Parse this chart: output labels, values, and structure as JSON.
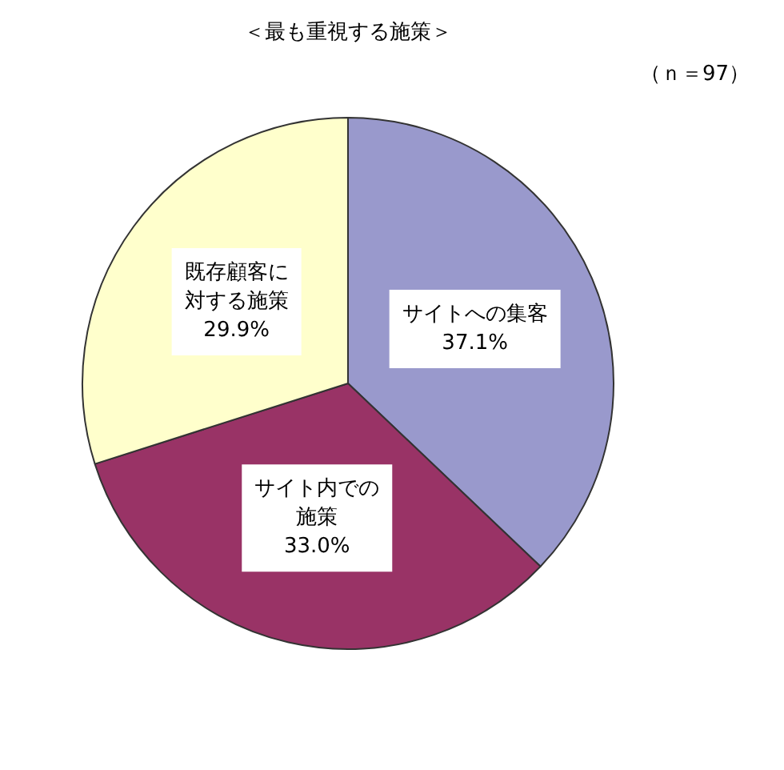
{
  "chart_data": {
    "type": "pie",
    "title": "＜最も重視する施策＞",
    "annotations": [
      "（ｎ＝97）"
    ],
    "categories": [
      "サイトへの集客",
      "サイト内での施策",
      "既存顧客に対する施策"
    ],
    "values": [
      37.1,
      33.0,
      29.9
    ],
    "value_labels": [
      "37.1%",
      "33.0%",
      "29.9%"
    ],
    "colors": [
      "#9999cc",
      "#993366",
      "#ffffcc"
    ]
  }
}
